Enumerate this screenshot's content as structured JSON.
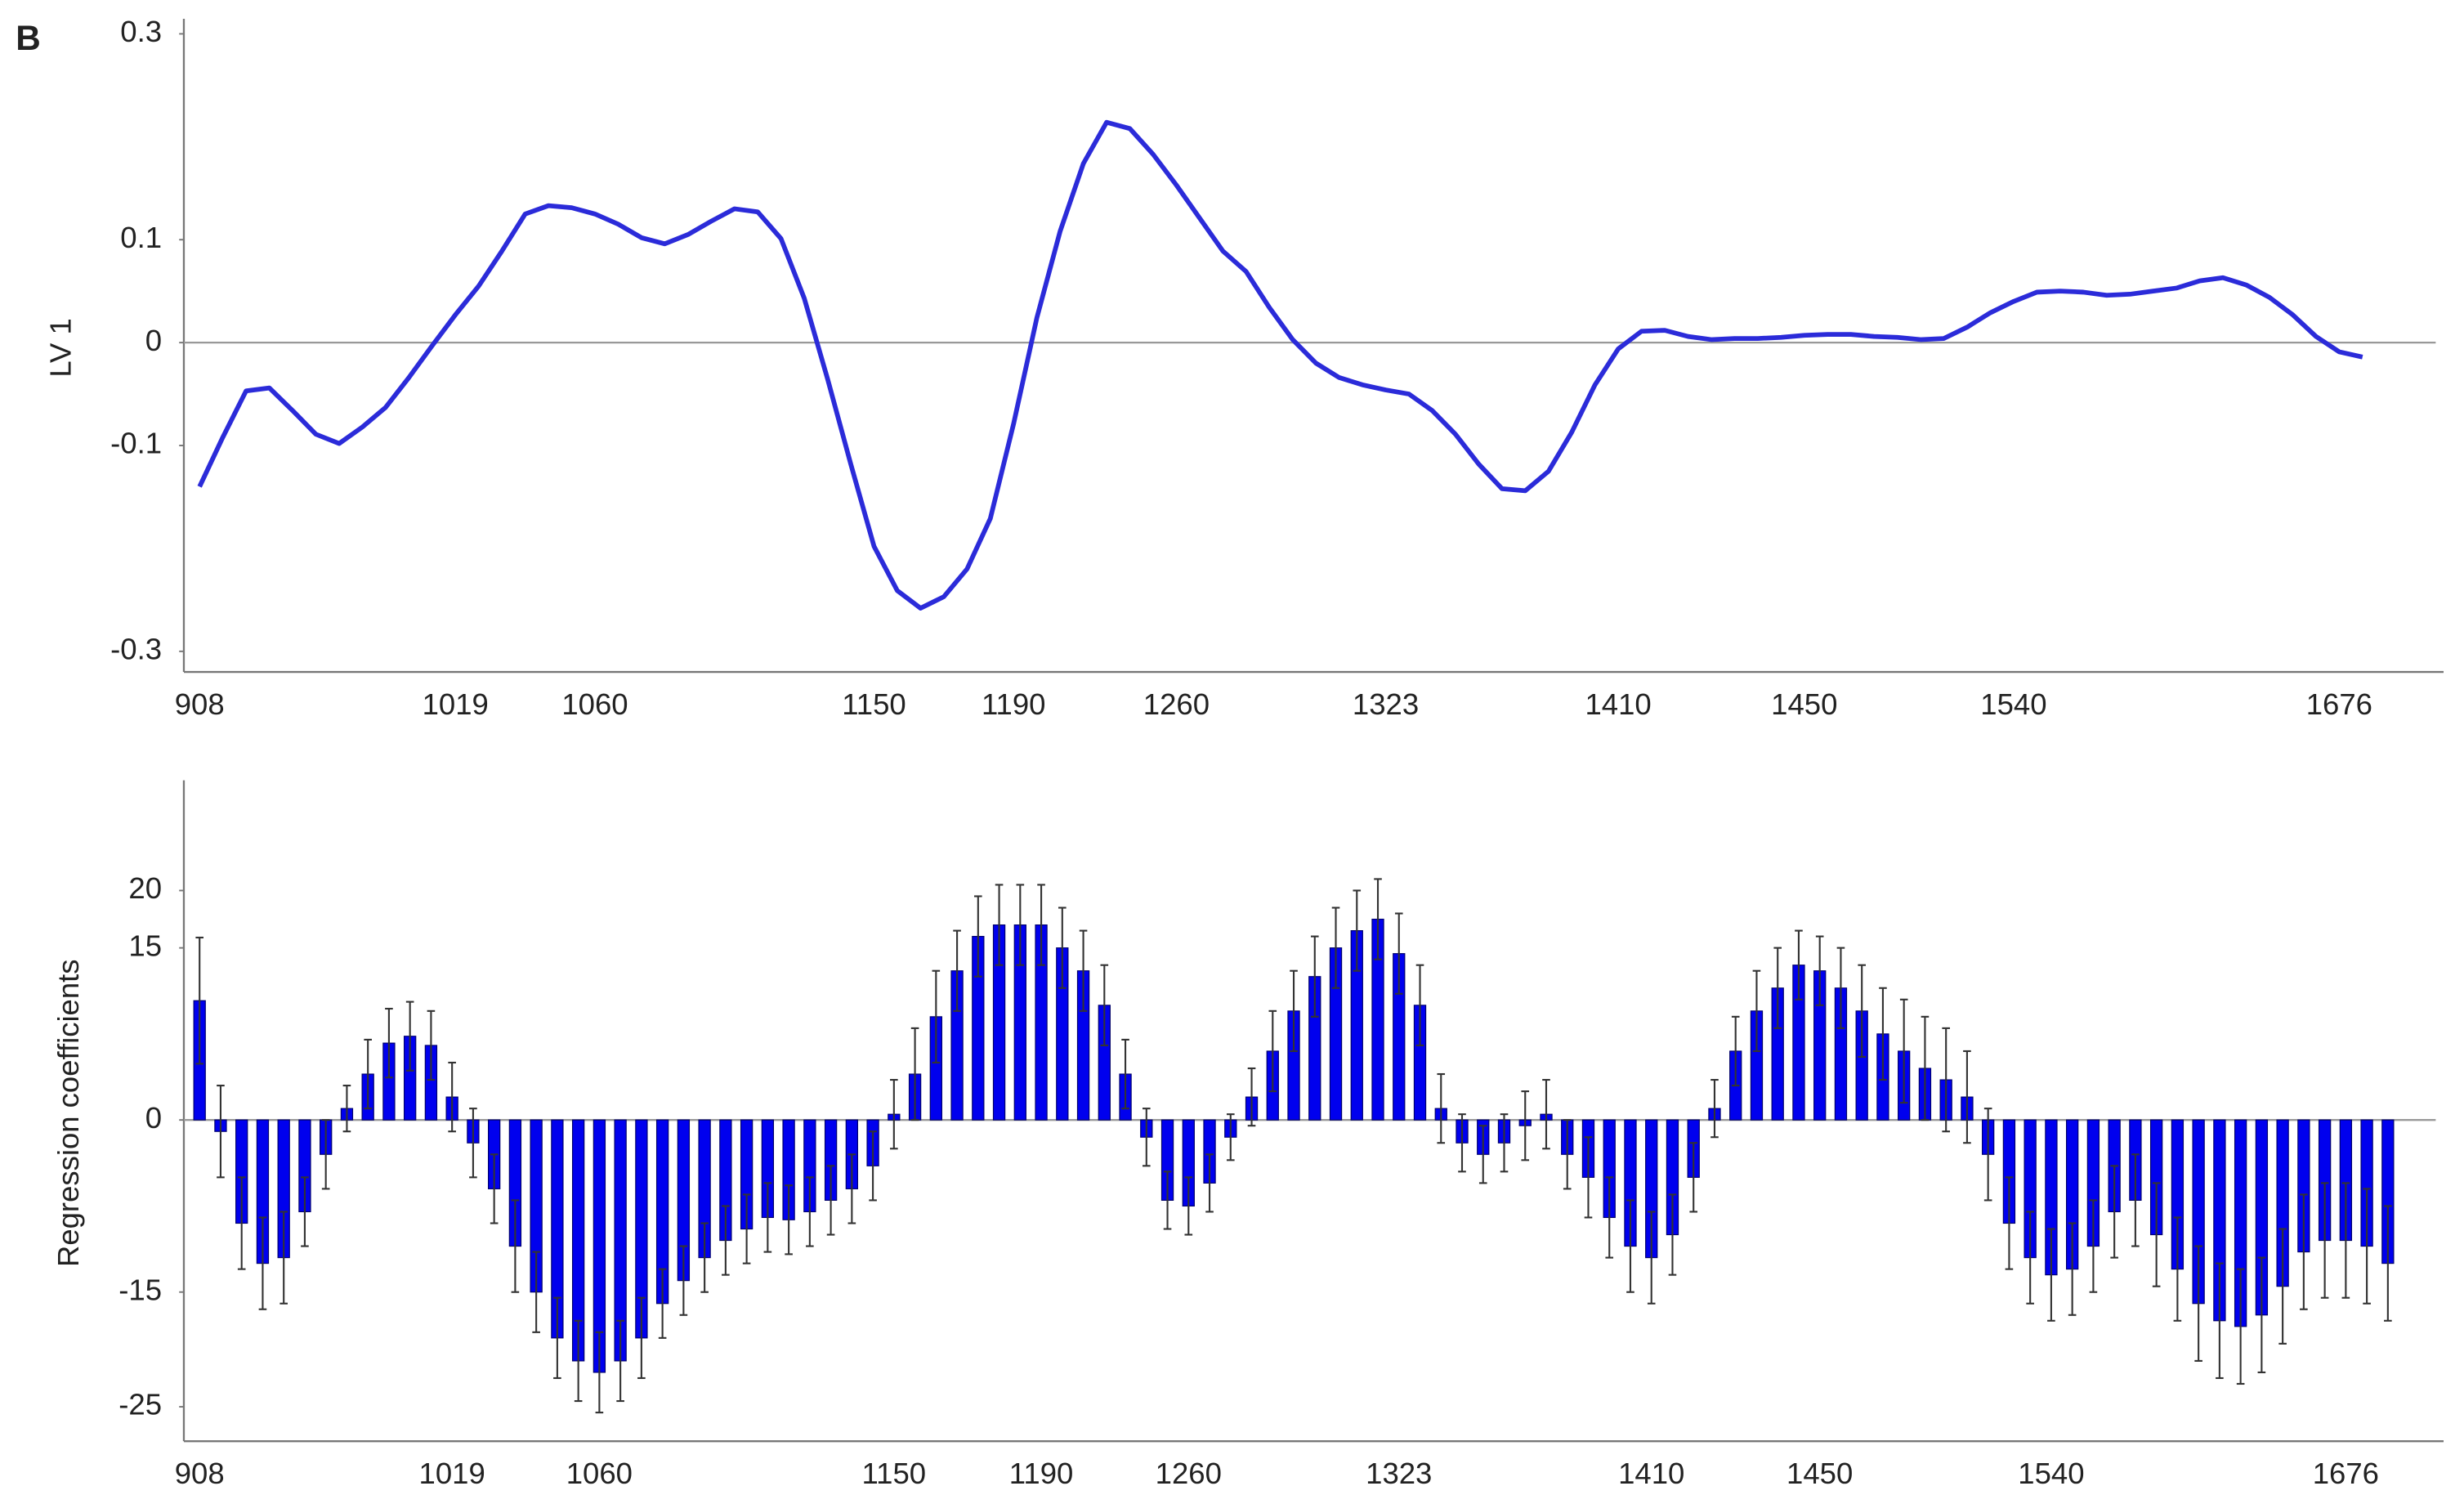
{
  "panel_label": "B",
  "chart_data": [
    {
      "type": "line",
      "ylabel": "LV 1",
      "categories": [
        "908",
        null,
        null,
        null,
        null,
        null,
        null,
        null,
        null,
        null,
        null,
        "1019",
        null,
        null,
        null,
        null,
        null,
        "1060",
        null,
        null,
        null,
        null,
        null,
        null,
        null,
        null,
        null,
        null,
        null,
        "1150",
        null,
        null,
        null,
        null,
        null,
        "1190",
        null,
        null,
        null,
        null,
        null,
        null,
        "1260",
        null,
        null,
        null,
        null,
        null,
        null,
        null,
        null,
        "1323",
        null,
        null,
        null,
        null,
        null,
        null,
        null,
        null,
        null,
        "1410",
        null,
        null,
        null,
        null,
        null,
        null,
        null,
        "1450",
        null,
        null,
        null,
        null,
        null,
        null,
        null,
        null,
        "1540",
        null,
        null,
        null,
        null,
        null,
        null,
        null,
        null,
        null,
        null,
        null,
        null,
        null,
        "1676",
        null,
        null
      ],
      "series": [
        {
          "name": "LV 1",
          "color": "#2b2bd9",
          "values": [
            -0.14,
            -0.092,
            -0.047,
            -0.044,
            -0.066,
            -0.089,
            -0.098,
            -0.082,
            -0.063,
            -0.034,
            -0.003,
            0.027,
            0.055,
            0.089,
            0.125,
            0.133,
            0.131,
            0.125,
            0.115,
            0.102,
            0.096,
            0.105,
            0.118,
            0.13,
            0.127,
            0.101,
            0.043,
            -0.035,
            -0.118,
            -0.198,
            -0.241,
            -0.258,
            -0.247,
            -0.22,
            -0.171,
            -0.079,
            0.024,
            0.108,
            0.174,
            0.214,
            0.208,
            0.183,
            0.153,
            0.121,
            0.089,
            0.069,
            0.034,
            0.003,
            -0.02,
            -0.034,
            -0.041,
            -0.046,
            -0.05,
            -0.066,
            -0.089,
            -0.118,
            -0.142,
            -0.144,
            -0.125,
            -0.087,
            -0.041,
            -0.006,
            0.011,
            0.012,
            0.006,
            0.003,
            0.004,
            0.004,
            0.005,
            0.007,
            0.008,
            0.008,
            0.006,
            0.005,
            0.003,
            0.004,
            0.015,
            0.029,
            0.04,
            0.049,
            0.05,
            0.049,
            0.046,
            0.047,
            0.05,
            0.053,
            0.06,
            0.063,
            0.056,
            0.044,
            0.027,
            0.006,
            -0.009,
            -0.014,
            null
          ]
        }
      ],
      "ylim": [
        -0.32,
        0.31
      ],
      "yticks": [
        0.3,
        0.1,
        0,
        -0.1,
        -0.3
      ]
    },
    {
      "type": "bar",
      "ylabel": "Regression coefficients",
      "categories": [
        "908",
        null,
        null,
        null,
        null,
        null,
        null,
        null,
        null,
        null,
        null,
        null,
        "1019",
        null,
        null,
        null,
        null,
        null,
        null,
        "1060",
        null,
        null,
        null,
        null,
        null,
        null,
        null,
        null,
        null,
        null,
        null,
        null,
        null,
        "1150",
        null,
        null,
        null,
        null,
        null,
        null,
        "1190",
        null,
        null,
        null,
        null,
        null,
        null,
        "1260",
        null,
        null,
        null,
        null,
        null,
        null,
        null,
        null,
        null,
        "1323",
        null,
        null,
        null,
        null,
        null,
        null,
        null,
        null,
        null,
        null,
        null,
        "1410",
        null,
        null,
        null,
        null,
        null,
        null,
        null,
        "1450",
        null,
        null,
        null,
        null,
        null,
        null,
        null,
        null,
        null,
        null,
        "1540",
        null,
        null,
        null,
        null,
        null,
        null,
        null,
        null,
        null,
        null,
        null,
        null,
        null,
        "1676",
        null,
        null
      ],
      "series": [
        {
          "name": "Regression coefficients",
          "color": "#0000ee",
          "values": [
            10.4,
            -1,
            -9,
            -12.5,
            -12,
            -8,
            -3,
            1,
            4,
            6.7,
            7.3,
            6.5,
            2,
            -2,
            -6,
            -11,
            -15,
            -19,
            -21,
            -22,
            -21,
            -19,
            -16,
            -14,
            -12,
            -10.5,
            -9.5,
            -8.5,
            -8.7,
            -8,
            -7,
            -6,
            -4,
            0.5,
            4,
            9,
            13,
            16,
            17,
            17,
            17,
            15,
            13,
            10,
            4,
            -1.5,
            -7,
            -7.5,
            -5.5,
            -1.5,
            2,
            6,
            9.5,
            12.5,
            15,
            16.5,
            17.5,
            14.5,
            10,
            1,
            -2,
            -3,
            -2,
            -0.5,
            0.5,
            -3,
            -5,
            -8.5,
            -11,
            -12,
            -10,
            -5,
            1,
            6,
            9.5,
            11.5,
            13.5,
            13,
            11.5,
            9.5,
            7.5,
            6,
            4.5,
            3.5,
            2,
            -3,
            -9,
            -12,
            -13.5,
            -13,
            -11,
            -8,
            -7,
            -10,
            -13,
            -16,
            -17.5,
            -18,
            -17,
            -14.5,
            -11.5,
            -10.5,
            -10.5,
            -11,
            -12.5
          ],
          "errors": [
            5.5,
            4,
            4,
            4,
            4,
            3,
            3,
            2,
            3,
            3,
            3,
            3,
            3,
            3,
            3,
            4,
            3.5,
            3.5,
            3.5,
            3.5,
            3.5,
            3.5,
            3,
            3,
            3,
            3,
            3,
            3,
            3,
            3,
            3,
            3,
            3,
            3,
            4,
            4,
            3.5,
            3.5,
            3.5,
            3.5,
            3.5,
            3.5,
            3.5,
            3.5,
            3,
            2.5,
            2.5,
            2.5,
            2.5,
            2,
            2.5,
            3.5,
            3.5,
            3.5,
            3.5,
            3.5,
            3.5,
            3.5,
            3.5,
            3,
            2.5,
            2.5,
            2.5,
            3,
            3,
            3,
            3.5,
            3.5,
            4,
            4,
            3.5,
            3,
            2.5,
            3,
            3.5,
            3.5,
            3,
            3,
            3.5,
            4,
            4,
            4.5,
            4.5,
            4.5,
            4,
            4,
            4,
            4,
            4,
            4,
            4,
            4,
            4,
            4.5,
            4.5,
            5,
            5,
            5,
            5,
            5,
            5,
            5,
            5,
            5,
            5
          ]
        }
      ],
      "ylim": [
        -28,
        29.2
      ],
      "yticks": [
        20,
        15,
        0,
        -15,
        -25
      ]
    }
  ]
}
